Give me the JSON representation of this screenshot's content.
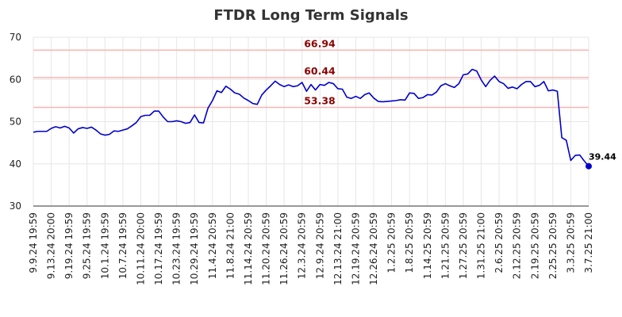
{
  "chart_data": {
    "type": "line",
    "title": "FTDR Long Term Signals",
    "ylim": [
      30,
      70
    ],
    "yticks": [
      30,
      40,
      50,
      60,
      70
    ],
    "grid": true,
    "xticks": [
      "9.9.24 19:59",
      "9.13.24 20:00",
      "9.19.24 19:59",
      "9.25.24 19:59",
      "10.1.24 19:59",
      "10.7.24 19:59",
      "10.11.24 20:00",
      "10.17.24 19:59",
      "10.23.24 19:59",
      "10.29.24 19:59",
      "11.4.24 20:59",
      "11.8.24 21:00",
      "11.14.24 20:59",
      "11.20.24 20:59",
      "11.26.24 20:59",
      "12.3.24 20:59",
      "12.9.24 20:59",
      "12.13.24 21:00",
      "12.19.24 20:59",
      "12.26.24 20:59",
      "1.2.25 20:59",
      "1.8.25 20:59",
      "1.14.25 20:59",
      "1.21.25 20:59",
      "1.27.25 20:59",
      "1.31.25 21:00",
      "2.6.25 20:59",
      "2.12.25 20:59",
      "2.19.25 20:59",
      "2.25.25 20:59",
      "3.3.25 20:59",
      "3.7.25 21:00"
    ],
    "reference_lines": [
      {
        "value": 66.94,
        "label": "66.94",
        "color": "#ffb3b3"
      },
      {
        "value": 60.44,
        "label": "60.44",
        "color": "#ffb3b3"
      },
      {
        "value": 53.38,
        "label": "53.38",
        "color": "#ffb3b3"
      }
    ],
    "series": [
      {
        "color": "#0000cc",
        "last_value_label": "39.44",
        "values": [
          47.5,
          47.7,
          47.7,
          47.7,
          48.4,
          48.8,
          48.5,
          48.9,
          48.5,
          47.3,
          48.3,
          48.6,
          48.4,
          48.7,
          48.0,
          47.1,
          46.8,
          47.0,
          47.8,
          47.7,
          48.0,
          48.3,
          49.0,
          49.8,
          51.2,
          51.5,
          51.5,
          52.5,
          52.5,
          51.1,
          50.0,
          50.0,
          50.2,
          50.0,
          49.6,
          49.8,
          51.6,
          49.8,
          49.7,
          53.2,
          55.0,
          57.3,
          56.9,
          58.4,
          57.7,
          56.8,
          56.5,
          55.6,
          55.0,
          54.3,
          54.1,
          56.3,
          57.5,
          58.5,
          59.6,
          58.8,
          58.3,
          58.7,
          58.3,
          58.5,
          59.3,
          57.2,
          58.8,
          57.5,
          58.8,
          58.6,
          59.3,
          59.0,
          57.8,
          57.7,
          55.8,
          55.5,
          56.0,
          55.5,
          56.4,
          56.8,
          55.6,
          54.8,
          54.7,
          54.8,
          54.9,
          55.0,
          55.2,
          55.1,
          56.8,
          56.7,
          55.5,
          55.7,
          56.4,
          56.3,
          57.0,
          58.5,
          59.0,
          58.5,
          58.1,
          59.0,
          61.1,
          61.3,
          62.4,
          62.0,
          59.9,
          58.3,
          59.8,
          60.8,
          59.5,
          59.0,
          57.9,
          58.2,
          57.8,
          58.8,
          59.5,
          59.5,
          58.3,
          58.6,
          59.5,
          57.3,
          57.5,
          57.2,
          46.2,
          45.6,
          40.8,
          42.0,
          42.1,
          40.7,
          39.44
        ]
      }
    ]
  }
}
